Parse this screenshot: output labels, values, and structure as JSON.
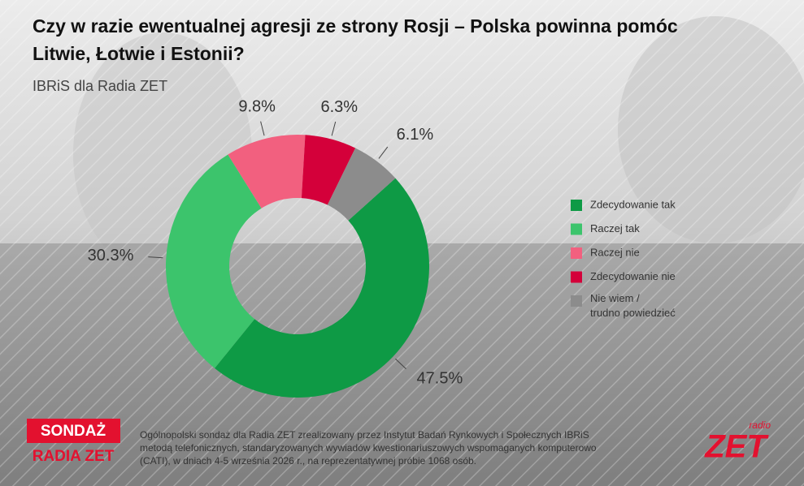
{
  "chart_data": {
    "type": "donut",
    "title_lines": [
      "Czy w razie ewentualnej agresji ze strony Rosji – Polska powinna pomóc",
      "Litwie, Łotwie i Estonii?"
    ],
    "subtitle": "IBRiS dla Radia ZET",
    "categories": [
      "Zdecydowanie tak",
      "Raczej tak",
      "Raczej nie",
      "Zdecydowanie nie",
      "Nie wiem / trudno powiedzieć"
    ],
    "values": [
      47.5,
      30.3,
      9.8,
      6.3,
      6.1
    ],
    "value_labels": [
      "47.5%",
      "30.3%",
      "9.8%",
      "6.3%",
      "6.1%"
    ],
    "colors": [
      "#0e9a45",
      "#3cc46c",
      "#f2607f",
      "#d4003a",
      "#8c8c8c"
    ],
    "legend_position": "right"
  },
  "footer": {
    "badge_top": "SONDAŻ",
    "badge_bottom": "RADIA ZET",
    "note_lines": [
      "Ogólnopolski sondaż dla Radia ZET zrealizowany przez Instytut Badań Rynkowych i Społecznych IBRiS",
      "metodą telefonicznych, standaryzowanych wywiadów kwestionariuszowych wspomaganych komputerowo",
      "(CATI), w dniach 4-5 września 2026 r., na reprezentatywnej próbie 1068 osób."
    ],
    "logo_small": "radio",
    "logo_big": "ZET"
  }
}
